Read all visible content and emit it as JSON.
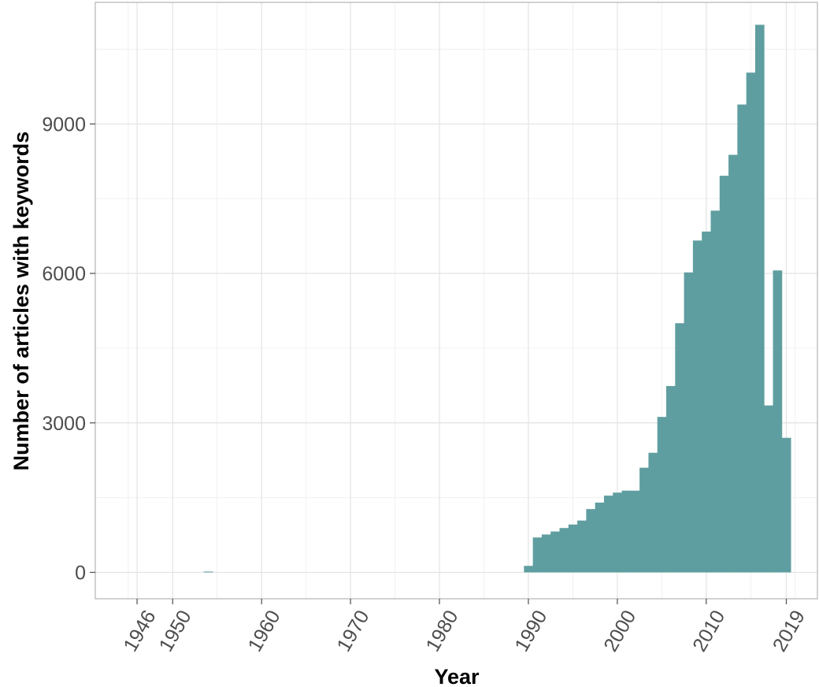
{
  "chart_data": {
    "type": "bar",
    "title": "",
    "xlabel": "Year",
    "ylabel": "Number of articles with keywords",
    "x_ticks": [
      1946,
      1950,
      1960,
      1970,
      1980,
      1990,
      2000,
      2010,
      2019
    ],
    "y_ticks": [
      0,
      3000,
      6000,
      9000
    ],
    "xlim": [
      1941.3,
      2022.5
    ],
    "ylim": [
      -530,
      11440
    ],
    "grid": true,
    "bar_color": "#5f9ea0",
    "years": [
      1954,
      1990,
      1991,
      1992,
      1993,
      1994,
      1995,
      1996,
      1997,
      1998,
      1999,
      2000,
      2001,
      2002,
      2003,
      2004,
      2005,
      2006,
      2007,
      2008,
      2009,
      2010,
      2011,
      2012,
      2013,
      2014,
      2015,
      2016,
      2017,
      2018,
      2019
    ],
    "values": [
      10,
      130,
      700,
      760,
      820,
      890,
      960,
      1040,
      1270,
      1400,
      1540,
      1600,
      1640,
      1640,
      2100,
      2400,
      3120,
      3740,
      5000,
      6020,
      6660,
      6840,
      7260,
      7960,
      8380,
      9390,
      10030,
      10990,
      3350,
      6060,
      2700
    ]
  }
}
